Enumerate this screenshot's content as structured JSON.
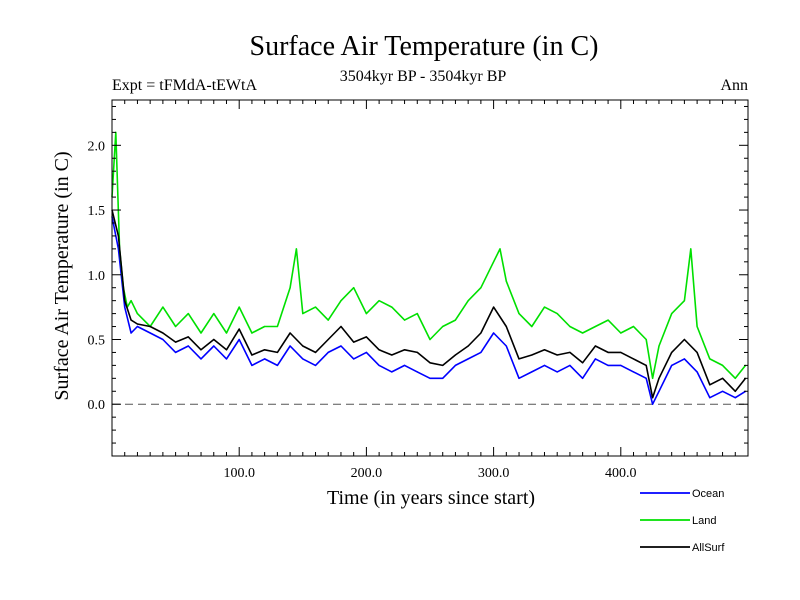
{
  "chart_data": {
    "type": "line",
    "title": "Surface Air Temperature (in C)",
    "subtitle_left": "Expt = tFMdA-tEWtA",
    "subtitle_center": "3504kyr BP - 3504kyr BP",
    "subtitle_right": "Ann",
    "xlabel": "Time (in years since start)",
    "ylabel": "Surface Air Temperature (in C)",
    "xlim": [
      0,
      500
    ],
    "ylim": [
      -0.4,
      2.35
    ],
    "x_ticks": [
      {
        "value": 100,
        "label": "100.0"
      },
      {
        "value": 200,
        "label": "200.0"
      },
      {
        "value": 300,
        "label": "300.0"
      },
      {
        "value": 400,
        "label": "400.0"
      }
    ],
    "y_ticks": [
      {
        "value": 0.0,
        "label": "0.0"
      },
      {
        "value": 0.5,
        "label": "0.5"
      },
      {
        "value": 1.0,
        "label": "1.0"
      },
      {
        "value": 1.5,
        "label": "1.5"
      },
      {
        "value": 2.0,
        "label": "2.0"
      }
    ],
    "zero_line": 0,
    "series": [
      {
        "name": "Ocean",
        "color": "#0000ff",
        "x": [
          0,
          5,
          10,
          15,
          20,
          30,
          40,
          50,
          60,
          70,
          80,
          90,
          100,
          110,
          120,
          130,
          140,
          150,
          160,
          170,
          180,
          190,
          200,
          210,
          220,
          230,
          240,
          250,
          260,
          270,
          280,
          290,
          300,
          310,
          320,
          330,
          340,
          350,
          360,
          370,
          380,
          390,
          400,
          410,
          420,
          425,
          430,
          440,
          450,
          460,
          470,
          480,
          490,
          498
        ],
        "values": [
          1.45,
          1.2,
          0.75,
          0.55,
          0.6,
          0.55,
          0.5,
          0.4,
          0.45,
          0.35,
          0.45,
          0.35,
          0.5,
          0.3,
          0.35,
          0.3,
          0.45,
          0.35,
          0.3,
          0.4,
          0.45,
          0.35,
          0.4,
          0.3,
          0.25,
          0.3,
          0.25,
          0.2,
          0.2,
          0.3,
          0.35,
          0.4,
          0.55,
          0.45,
          0.2,
          0.25,
          0.3,
          0.25,
          0.3,
          0.2,
          0.35,
          0.3,
          0.3,
          0.25,
          0.2,
          0.0,
          0.1,
          0.3,
          0.35,
          0.25,
          0.05,
          0.1,
          0.05,
          0.1
        ]
      },
      {
        "name": "Land",
        "color": "#00e000",
        "x": [
          0,
          3,
          6,
          9,
          12,
          15,
          20,
          30,
          40,
          50,
          60,
          70,
          80,
          90,
          100,
          110,
          120,
          130,
          140,
          145,
          150,
          160,
          170,
          180,
          190,
          200,
          210,
          220,
          230,
          240,
          250,
          260,
          270,
          280,
          290,
          300,
          305,
          310,
          320,
          330,
          340,
          350,
          360,
          370,
          380,
          390,
          400,
          410,
          420,
          425,
          430,
          440,
          450,
          455,
          460,
          470,
          480,
          490,
          498
        ],
        "values": [
          1.6,
          2.1,
          1.2,
          0.9,
          0.75,
          0.8,
          0.7,
          0.6,
          0.75,
          0.6,
          0.7,
          0.55,
          0.7,
          0.55,
          0.75,
          0.55,
          0.6,
          0.6,
          0.9,
          1.2,
          0.7,
          0.75,
          0.65,
          0.8,
          0.9,
          0.7,
          0.8,
          0.75,
          0.65,
          0.7,
          0.5,
          0.6,
          0.65,
          0.8,
          0.9,
          1.1,
          1.2,
          0.95,
          0.7,
          0.6,
          0.75,
          0.7,
          0.6,
          0.55,
          0.6,
          0.65,
          0.55,
          0.6,
          0.5,
          0.2,
          0.45,
          0.7,
          0.8,
          1.2,
          0.6,
          0.35,
          0.3,
          0.2,
          0.3
        ]
      },
      {
        "name": "AllSurf",
        "color": "#000000",
        "x": [
          0,
          5,
          10,
          15,
          20,
          30,
          40,
          50,
          60,
          70,
          80,
          90,
          100,
          110,
          120,
          130,
          140,
          150,
          160,
          170,
          180,
          190,
          200,
          210,
          220,
          230,
          240,
          250,
          260,
          270,
          280,
          290,
          300,
          310,
          320,
          330,
          340,
          350,
          360,
          370,
          380,
          390,
          400,
          410,
          420,
          425,
          430,
          440,
          450,
          460,
          470,
          480,
          490,
          498
        ],
        "values": [
          1.5,
          1.3,
          0.8,
          0.65,
          0.62,
          0.6,
          0.55,
          0.48,
          0.52,
          0.42,
          0.5,
          0.42,
          0.58,
          0.38,
          0.42,
          0.4,
          0.55,
          0.45,
          0.4,
          0.5,
          0.6,
          0.48,
          0.52,
          0.42,
          0.38,
          0.42,
          0.4,
          0.32,
          0.3,
          0.38,
          0.45,
          0.55,
          0.75,
          0.6,
          0.35,
          0.38,
          0.42,
          0.38,
          0.4,
          0.32,
          0.45,
          0.4,
          0.4,
          0.35,
          0.3,
          0.05,
          0.2,
          0.4,
          0.5,
          0.4,
          0.15,
          0.2,
          0.1,
          0.2
        ]
      }
    ],
    "legend": [
      {
        "name": "Ocean",
        "color": "#0000ff"
      },
      {
        "name": "Land",
        "color": "#00e000"
      },
      {
        "name": "AllSurf",
        "color": "#000000"
      }
    ]
  }
}
